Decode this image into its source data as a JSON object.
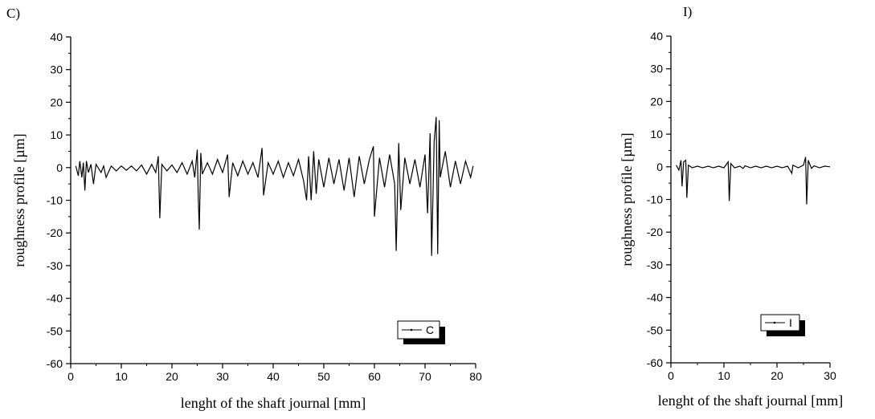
{
  "chart_data": [
    {
      "panel": "C)",
      "type": "line",
      "xlabel": "lenght of the shaft journal [mm]",
      "ylabel": "roughness profile [µm]",
      "xlim": [
        0,
        80
      ],
      "ylim": [
        -60,
        40
      ],
      "xticks": [
        0,
        10,
        20,
        30,
        40,
        50,
        60,
        70,
        80
      ],
      "yticks": [
        -60,
        -50,
        -40,
        -30,
        -20,
        -10,
        0,
        10,
        20,
        30,
        40
      ],
      "grid": false,
      "legend": {
        "position": "bottom-right",
        "entries": [
          "C"
        ]
      },
      "series": [
        {
          "name": "C",
          "points": [
            [
              1.0,
              0.5
            ],
            [
              1.5,
              -2.5
            ],
            [
              1.8,
              2.0
            ],
            [
              2.2,
              -3.0
            ],
            [
              2.5,
              1.5
            ],
            [
              2.8,
              -7.0
            ],
            [
              3.1,
              2.0
            ],
            [
              3.5,
              -1.5
            ],
            [
              4.0,
              1.0
            ],
            [
              4.5,
              -5.0
            ],
            [
              5.0,
              1.0
            ],
            [
              6.0,
              -1.5
            ],
            [
              6.5,
              0.5
            ],
            [
              7.0,
              -3.0
            ],
            [
              8.0,
              0.5
            ],
            [
              9.0,
              -1.0
            ],
            [
              10.0,
              0.5
            ],
            [
              11.0,
              -0.8
            ],
            [
              12.0,
              0.5
            ],
            [
              13.0,
              -1.0
            ],
            [
              14.0,
              0.8
            ],
            [
              15.0,
              -2.0
            ],
            [
              16.0,
              1.0
            ],
            [
              16.8,
              -1.5
            ],
            [
              17.3,
              3.5
            ],
            [
              17.6,
              -15.5
            ],
            [
              18.0,
              1.0
            ],
            [
              19.0,
              -1.0
            ],
            [
              20.0,
              0.8
            ],
            [
              21.0,
              -1.5
            ],
            [
              22.0,
              1.5
            ],
            [
              23.0,
              -2.0
            ],
            [
              24.0,
              2.0
            ],
            [
              24.5,
              -3.0
            ],
            [
              25.0,
              5.5
            ],
            [
              25.2,
              -9.0
            ],
            [
              25.4,
              -19.0
            ],
            [
              25.7,
              4.5
            ],
            [
              26.0,
              -2.0
            ],
            [
              27.0,
              1.5
            ],
            [
              28.0,
              -2.0
            ],
            [
              29.0,
              2.5
            ],
            [
              30.0,
              -1.5
            ],
            [
              31.0,
              4.0
            ],
            [
              31.3,
              -9.0
            ],
            [
              32.0,
              1.5
            ],
            [
              33.0,
              -2.5
            ],
            [
              34.0,
              2.0
            ],
            [
              35.0,
              -2.0
            ],
            [
              36.0,
              1.5
            ],
            [
              37.0,
              -3.0
            ],
            [
              37.8,
              6.0
            ],
            [
              38.1,
              -8.5
            ],
            [
              39.0,
              1.5
            ],
            [
              40.0,
              -2.0
            ],
            [
              41.0,
              2.0
            ],
            [
              42.0,
              -3.0
            ],
            [
              43.0,
              1.5
            ],
            [
              44.0,
              -2.5
            ],
            [
              45.0,
              2.5
            ],
            [
              46.0,
              -4.0
            ],
            [
              46.6,
              -10.0
            ],
            [
              47.0,
              3.5
            ],
            [
              47.5,
              -10.0
            ],
            [
              48.0,
              5.0
            ],
            [
              48.5,
              -8.0
            ],
            [
              49.0,
              2.5
            ],
            [
              50.0,
              -6.0
            ],
            [
              51.0,
              3.0
            ],
            [
              52.0,
              -5.0
            ],
            [
              53.0,
              2.5
            ],
            [
              54.0,
              -7.0
            ],
            [
              55.0,
              3.0
            ],
            [
              56.0,
              -9.0
            ],
            [
              57.0,
              3.5
            ],
            [
              58.0,
              -5.0
            ],
            [
              59.0,
              2.5
            ],
            [
              59.8,
              6.5
            ],
            [
              60.0,
              -15.0
            ],
            [
              61.0,
              3.0
            ],
            [
              62.0,
              -6.0
            ],
            [
              63.0,
              4.0
            ],
            [
              64.0,
              -5.0
            ],
            [
              64.3,
              -25.5
            ],
            [
              64.8,
              7.5
            ],
            [
              65.2,
              -13.0
            ],
            [
              66.0,
              3.0
            ],
            [
              67.0,
              -5.0
            ],
            [
              68.0,
              2.5
            ],
            [
              69.0,
              -6.0
            ],
            [
              70.0,
              4.0
            ],
            [
              70.5,
              -14.0
            ],
            [
              71.0,
              10.5
            ],
            [
              71.3,
              -27.0
            ],
            [
              71.8,
              8.0
            ],
            [
              72.2,
              15.5
            ],
            [
              72.5,
              -26.5
            ],
            [
              72.8,
              14.5
            ],
            [
              73.0,
              -3.0
            ],
            [
              74.0,
              5.0
            ],
            [
              75.0,
              -6.0
            ],
            [
              76.0,
              2.0
            ],
            [
              77.0,
              -5.0
            ],
            [
              78.0,
              2.0
            ],
            [
              79.0,
              -3.0
            ],
            [
              79.5,
              0.5
            ]
          ]
        }
      ]
    },
    {
      "panel": "I)",
      "type": "line",
      "xlabel": "lenght of the shaft journal [mm]",
      "ylabel": "roughness profile [µm]",
      "xlim": [
        0,
        30
      ],
      "ylim": [
        -60,
        40
      ],
      "xticks": [
        0,
        10,
        20,
        30
      ],
      "yticks": [
        -60,
        -50,
        -40,
        -30,
        -20,
        -10,
        0,
        10,
        20,
        30,
        40
      ],
      "grid": false,
      "legend": {
        "position": "bottom-right",
        "entries": [
          "I"
        ]
      },
      "series": [
        {
          "name": "I",
          "points": [
            [
              1.0,
              0.5
            ],
            [
              1.5,
              -1.0
            ],
            [
              1.9,
              2.0
            ],
            [
              2.1,
              -6.0
            ],
            [
              2.4,
              1.5
            ],
            [
              2.8,
              2.0
            ],
            [
              3.0,
              -9.5
            ],
            [
              3.3,
              0.5
            ],
            [
              4.0,
              -0.3
            ],
            [
              5.0,
              0.2
            ],
            [
              6.0,
              -0.3
            ],
            [
              7.0,
              0.2
            ],
            [
              8.0,
              -0.3
            ],
            [
              9.0,
              0.2
            ],
            [
              10.0,
              -0.3
            ],
            [
              10.8,
              1.5
            ],
            [
              11.0,
              -10.5
            ],
            [
              11.3,
              1.0
            ],
            [
              12.0,
              -0.3
            ],
            [
              13.0,
              0.2
            ],
            [
              13.6,
              -0.5
            ],
            [
              14.0,
              0.3
            ],
            [
              15.0,
              -0.3
            ],
            [
              16.0,
              0.2
            ],
            [
              17.0,
              -0.3
            ],
            [
              18.0,
              0.2
            ],
            [
              19.0,
              -0.3
            ],
            [
              20.0,
              0.2
            ],
            [
              21.0,
              -0.3
            ],
            [
              22.0,
              0.2
            ],
            [
              22.8,
              -2.0
            ],
            [
              23.0,
              0.5
            ],
            [
              24.0,
              -0.3
            ],
            [
              25.0,
              0.5
            ],
            [
              25.4,
              3.0
            ],
            [
              25.6,
              -11.5
            ],
            [
              25.9,
              2.0
            ],
            [
              26.5,
              -0.5
            ],
            [
              27.0,
              0.3
            ],
            [
              28.0,
              -0.3
            ],
            [
              29.0,
              0.2
            ],
            [
              30.0,
              0.0
            ]
          ]
        }
      ]
    }
  ]
}
